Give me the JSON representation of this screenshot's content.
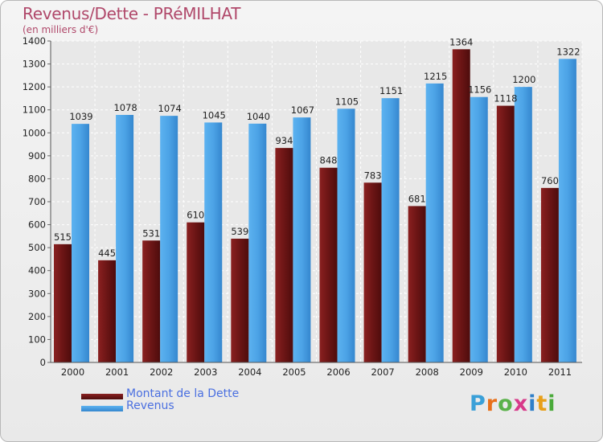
{
  "title": "Revenus/Dette - PRéMILHAT",
  "subtitle": "(en milliers d'€)",
  "legend": [
    {
      "label": "Montant de la Dette",
      "color": "#6b1515"
    },
    {
      "label": "Revenus",
      "color": "#4ca3e6"
    }
  ],
  "logo": {
    "text": "Proxiti"
  },
  "chart_data": {
    "type": "bar",
    "categories": [
      "2000",
      "2001",
      "2002",
      "2003",
      "2004",
      "2005",
      "2006",
      "2007",
      "2008",
      "2009",
      "2010",
      "2011"
    ],
    "series": [
      {
        "name": "Montant de la Dette",
        "color": "#6b1515",
        "values": [
          515,
          445,
          531,
          610,
          539,
          934,
          848,
          783,
          681,
          1364,
          1118,
          760
        ]
      },
      {
        "name": "Revenus",
        "color": "#4ca3e6",
        "values": [
          1039,
          1078,
          1074,
          1045,
          1040,
          1067,
          1105,
          1151,
          1215,
          1156,
          1200,
          1322
        ]
      }
    ],
    "ylim": [
      0,
      1400
    ],
    "yticks": [
      0,
      100,
      200,
      300,
      400,
      500,
      600,
      700,
      800,
      900,
      1000,
      1100,
      1200,
      1300,
      1400
    ],
    "grid": true,
    "legend_position": "bottom-left"
  }
}
